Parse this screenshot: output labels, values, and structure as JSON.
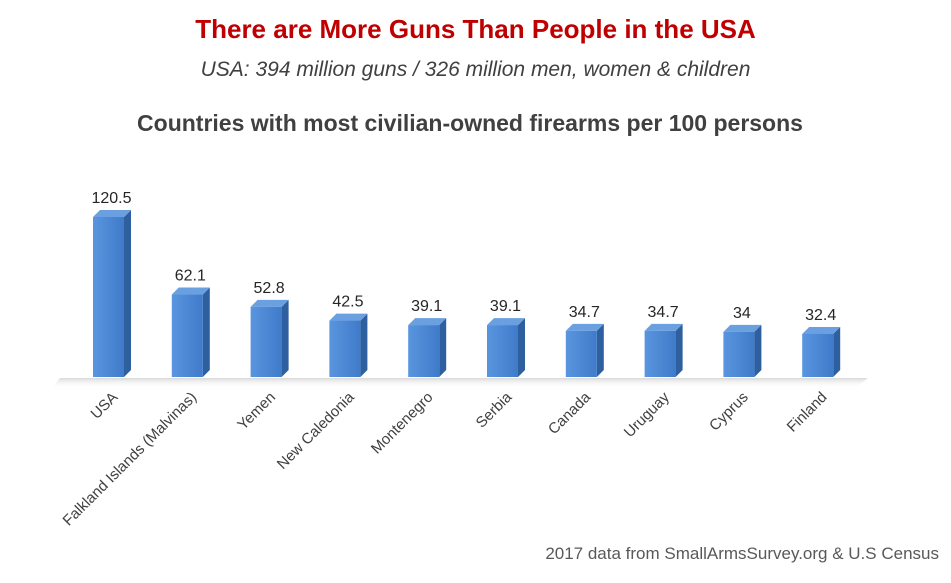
{
  "title": "There are More Guns Than People in the USA",
  "subtitle": "USA:  394 million guns / 326 million men, women & children",
  "chart_data": {
    "type": "bar",
    "title": "Countries with most civilian-owned firearms per 100 persons",
    "categories": [
      "USA",
      "Falkland Islands (Malvinas)",
      "Yemen",
      "New Caledonia",
      "Montenegro",
      "Serbia",
      "Canada",
      "Uruguay",
      "Cyprus",
      "Finland"
    ],
    "values": [
      120.5,
      62.1,
      52.8,
      42.5,
      39.1,
      39.1,
      34.7,
      34.7,
      34,
      32.4
    ],
    "value_labels": [
      "120.5",
      "62.1",
      "52.8",
      "42.5",
      "39.1",
      "39.1",
      "34.7",
      "34.7",
      "34",
      "32.4"
    ],
    "xlabel": "",
    "ylabel": "",
    "ylim": [
      0,
      130
    ],
    "grid": false,
    "legend": "none",
    "style": "3d",
    "colors": {
      "bar_front": "#4a86d4",
      "bar_side": "#2e5f9e",
      "bar_top": "#6a9fe0"
    }
  },
  "source": "2017 data from SmallArmsSurvey.org & U.S Census"
}
